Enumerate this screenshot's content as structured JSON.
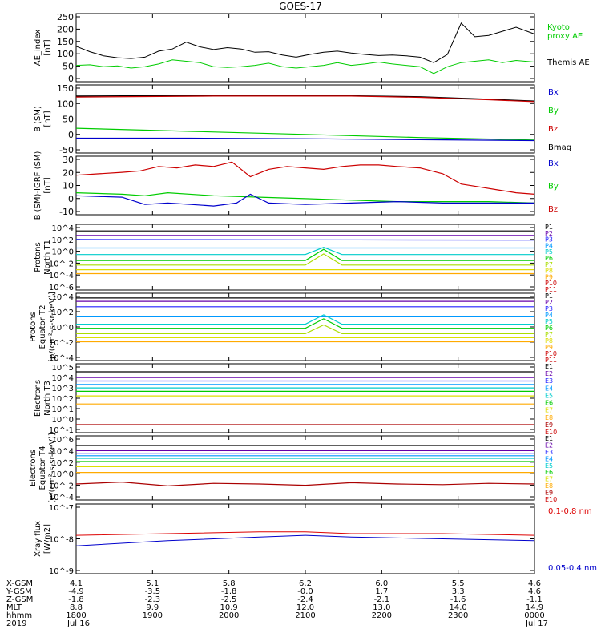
{
  "figure_title": "GOES-17",
  "chart_data": [
    {
      "type": "line",
      "ylabel": [
        "AE_index",
        "[nT]"
      ],
      "ylim": [
        0,
        250
      ],
      "yticks": [
        "250",
        "200",
        "150",
        "100",
        "50",
        "0"
      ],
      "legend": [
        "Kyoto",
        "proxy AE",
        "Themis AE"
      ],
      "series": [
        {
          "name": "Themis AE",
          "color": "#000000",
          "x": [
            0,
            0.03,
            0.06,
            0.09,
            0.12,
            0.15,
            0.18,
            0.21,
            0.24,
            0.27,
            0.3,
            0.33,
            0.36,
            0.39,
            0.42,
            0.45,
            0.48,
            0.51,
            0.54,
            0.57,
            0.6,
            0.63,
            0.66,
            0.69,
            0.72,
            0.75,
            0.78,
            0.81,
            0.84,
            0.87,
            0.9,
            0.93,
            0.96,
            1.0
          ],
          "values": [
            130,
            110,
            95,
            88,
            85,
            90,
            112,
            120,
            145,
            128,
            118,
            125,
            120,
            108,
            110,
            98,
            90,
            100,
            108,
            112,
            105,
            100,
            96,
            98,
            95,
            90,
            70,
            100,
            215,
            165,
            170,
            185,
            200,
            175
          ]
        },
        {
          "name": "Kyoto proxy AE",
          "color": "#00cc00",
          "x": [
            0,
            0.03,
            0.06,
            0.09,
            0.12,
            0.15,
            0.18,
            0.21,
            0.24,
            0.27,
            0.3,
            0.33,
            0.36,
            0.39,
            0.42,
            0.45,
            0.48,
            0.51,
            0.54,
            0.57,
            0.6,
            0.63,
            0.66,
            0.69,
            0.72,
            0.75,
            0.78,
            0.81,
            0.84,
            0.87,
            0.9,
            0.93,
            0.96,
            1.0
          ],
          "values": [
            60,
            62,
            55,
            58,
            50,
            55,
            65,
            80,
            75,
            70,
            55,
            52,
            55,
            60,
            68,
            55,
            50,
            55,
            60,
            70,
            60,
            65,
            72,
            65,
            60,
            55,
            30,
            55,
            70,
            75,
            80,
            70,
            78,
            72
          ]
        }
      ]
    },
    {
      "type": "line",
      "ylabel": [
        "B (SM)",
        "[nT]"
      ],
      "ylim": [
        -60,
        160
      ],
      "yticks": [
        "150",
        "100",
        "50",
        "0",
        "-50"
      ],
      "legend": [
        "Bx",
        "By",
        "Bz",
        "Bmag"
      ],
      "series": [
        {
          "name": "Bmag",
          "color": "#000000",
          "x": [
            0,
            0.3,
            0.6,
            0.75,
            0.9,
            1.0
          ],
          "values": [
            124,
            126,
            125,
            122,
            114,
            108
          ]
        },
        {
          "name": "Bz",
          "color": "#cc0000",
          "x": [
            0,
            0.3,
            0.6,
            0.75,
            0.9,
            1.0
          ],
          "values": [
            121,
            124,
            124,
            120,
            112,
            106
          ]
        },
        {
          "name": "By",
          "color": "#00cc00",
          "x": [
            0,
            0.25,
            0.5,
            0.75,
            1.0
          ],
          "values": [
            20,
            10,
            0,
            -10,
            -18
          ]
        },
        {
          "name": "Bx",
          "color": "#0000cc",
          "x": [
            0,
            0.25,
            0.5,
            0.75,
            1.0
          ],
          "values": [
            -12,
            -12,
            -14,
            -17,
            -20
          ]
        }
      ]
    },
    {
      "type": "line",
      "ylabel": [
        "B (SM)-IGRF (SM)",
        "[nT]"
      ],
      "ylim": [
        -10,
        30
      ],
      "yticks": [
        "30",
        "20",
        "10",
        "0",
        "-10"
      ],
      "legend": [
        "Bx",
        "By",
        "Bz"
      ],
      "series": [
        {
          "name": "Bz",
          "color": "#cc0000",
          "x": [
            0,
            0.05,
            0.1,
            0.14,
            0.18,
            0.22,
            0.26,
            0.3,
            0.34,
            0.38,
            0.42,
            0.46,
            0.5,
            0.54,
            0.58,
            0.62,
            0.66,
            0.7,
            0.75,
            0.8,
            0.84,
            0.88,
            0.92,
            0.96,
            1.0
          ],
          "values": [
            17,
            18,
            19,
            20,
            23,
            22,
            24,
            23,
            26,
            16,
            21,
            23,
            22,
            21,
            23,
            24,
            24,
            23,
            22,
            18,
            11,
            9,
            7,
            5,
            4
          ]
        },
        {
          "name": "By",
          "color": "#00cc00",
          "x": [
            0,
            0.1,
            0.15,
            0.2,
            0.3,
            0.4,
            0.5,
            0.6,
            0.7,
            0.8,
            0.9,
            1.0
          ],
          "values": [
            5,
            4,
            3,
            5,
            3,
            2,
            1,
            0,
            -1,
            -1,
            -1,
            -2
          ]
        },
        {
          "name": "Bx",
          "color": "#0000cc",
          "x": [
            0,
            0.1,
            0.15,
            0.2,
            0.25,
            0.3,
            0.35,
            0.38,
            0.42,
            0.5,
            0.6,
            0.7,
            0.8,
            0.9,
            1.0
          ],
          "values": [
            3,
            2,
            -3,
            -2,
            -3,
            -4,
            -2,
            4,
            -2,
            -3,
            -2,
            -1,
            -2,
            -2,
            -2
          ]
        }
      ]
    },
    {
      "type": "line",
      "ylabel": [
        "Protons",
        "North T1"
      ],
      "ylim": [
        -6,
        4
      ],
      "yscale": "log",
      "yticks": [
        "10^4",
        "10^2",
        "10^0",
        "10^-2",
        "10^-4",
        "10^-6"
      ],
      "legend": [
        "P1",
        "P2",
        "P3",
        "P4",
        "P5",
        "P6",
        "P7",
        "P8",
        "P9",
        "P10",
        "P11"
      ],
      "series": [
        {
          "name": "P1",
          "color": "#000000",
          "x": [
            0,
            1
          ],
          "values": [
            3.0,
            3.0
          ]
        },
        {
          "name": "P2",
          "color": "#6600aa",
          "x": [
            0,
            1
          ],
          "values": [
            2.3,
            2.3
          ]
        },
        {
          "name": "P3",
          "color": "#2222ff",
          "x": [
            0,
            1
          ],
          "values": [
            1.7,
            1.6
          ]
        },
        {
          "name": "P4",
          "color": "#0099ff",
          "x": [
            0,
            1
          ],
          "values": [
            0.4,
            0.4
          ]
        },
        {
          "name": "P5",
          "color": "#00cccc",
          "x": [
            0,
            0.5,
            0.54,
            0.58,
            1
          ],
          "values": [
            -0.6,
            -0.6,
            0.5,
            -0.6,
            -0.6
          ]
        },
        {
          "name": "P6",
          "color": "#00cc00",
          "x": [
            0,
            0.5,
            0.54,
            0.58,
            1
          ],
          "values": [
            -1.5,
            -1.5,
            0.2,
            -1.5,
            -1.5
          ]
        },
        {
          "name": "P7",
          "color": "#aadd00",
          "x": [
            0,
            0.5,
            0.54,
            0.58,
            1
          ],
          "values": [
            -2.2,
            -2.2,
            -0.5,
            -2.2,
            -2.2
          ]
        },
        {
          "name": "P8",
          "color": "#dddd00",
          "x": [
            0,
            1
          ],
          "values": [
            -2.9,
            -2.9
          ]
        },
        {
          "name": "P9",
          "color": "#ffaa00",
          "x": [
            0,
            1
          ],
          "values": [
            -3.5,
            -3.5
          ]
        }
      ]
    },
    {
      "type": "line",
      "ylabel": [
        "Protons",
        "Equator T2",
        "[p/(cm²-s-sr-keV)]"
      ],
      "ylim": [
        -6,
        4
      ],
      "yscale": "log",
      "yticks": [
        "10^4",
        "10^2",
        "10^0",
        "10^-2",
        "10^-4"
      ],
      "legend": [
        "P1",
        "P2",
        "P3",
        "P4",
        "P5",
        "P6",
        "P7",
        "P8",
        "P9",
        "P10",
        "P11"
      ],
      "series": [
        {
          "name": "P1",
          "color": "#000000",
          "x": [
            0,
            1
          ],
          "values": [
            3.3,
            3.3
          ]
        },
        {
          "name": "P2",
          "color": "#6600aa",
          "x": [
            0,
            1
          ],
          "values": [
            2.8,
            2.8
          ]
        },
        {
          "name": "P3",
          "color": "#2222ff",
          "x": [
            0,
            1
          ],
          "values": [
            2.0,
            2.0
          ]
        },
        {
          "name": "P4",
          "color": "#0099ff",
          "x": [
            0,
            1
          ],
          "values": [
            0.5,
            0.5
          ]
        },
        {
          "name": "P5",
          "color": "#00cccc",
          "x": [
            0,
            0.5,
            0.54,
            0.58,
            1
          ],
          "values": [
            -0.6,
            -0.6,
            0.8,
            -0.6,
            -0.6
          ]
        },
        {
          "name": "P6",
          "color": "#00cc00",
          "x": [
            0,
            0.5,
            0.54,
            0.58,
            1
          ],
          "values": [
            -1.2,
            -1.2,
            0.2,
            -1.2,
            -1.2
          ]
        },
        {
          "name": "P7",
          "color": "#aadd00",
          "x": [
            0,
            0.5,
            0.54,
            0.58,
            1
          ],
          "values": [
            -2.0,
            -2.0,
            -0.7,
            -2.0,
            -2.0
          ]
        },
        {
          "name": "P8",
          "color": "#dddd00",
          "x": [
            0,
            1
          ],
          "values": [
            -2.6,
            -2.6
          ]
        },
        {
          "name": "P9",
          "color": "#ffaa00",
          "x": [
            0,
            1
          ],
          "values": [
            -3.2,
            -3.2
          ]
        }
      ]
    },
    {
      "type": "line",
      "ylabel": [
        "Electrons",
        "North T3"
      ],
      "ylim": [
        -1,
        5
      ],
      "yscale": "log",
      "yticks": [
        "10^5",
        "10^4",
        "10^3",
        "10^2",
        "10^1",
        "10^0",
        "10^-1"
      ],
      "legend": [
        "E1",
        "E2",
        "E3",
        "E4",
        "E5",
        "E6",
        "E7",
        "E8",
        "E9",
        "E10"
      ],
      "series": [
        {
          "name": "E1",
          "color": "#000000",
          "x": [
            0,
            1
          ],
          "values": [
            4.3,
            4.3
          ]
        },
        {
          "name": "E2",
          "color": "#6600aa",
          "x": [
            0,
            1
          ],
          "values": [
            3.8,
            3.8
          ]
        },
        {
          "name": "E3",
          "color": "#2222ff",
          "x": [
            0,
            1
          ],
          "values": [
            3.5,
            3.5
          ]
        },
        {
          "name": "E4",
          "color": "#0099ff",
          "x": [
            0,
            1
          ],
          "values": [
            3.2,
            3.2
          ]
        },
        {
          "name": "E5",
          "color": "#00cccc",
          "x": [
            0,
            1
          ],
          "values": [
            2.9,
            2.9
          ]
        },
        {
          "name": "E6",
          "color": "#00cc00",
          "x": [
            0,
            1
          ],
          "values": [
            2.6,
            2.6
          ]
        },
        {
          "name": "E7",
          "color": "#dddd00",
          "x": [
            0,
            1
          ],
          "values": [
            2.2,
            2.2
          ]
        },
        {
          "name": "E8",
          "color": "#ffaa00",
          "x": [
            0,
            1
          ],
          "values": [
            1.5,
            1.5
          ]
        },
        {
          "name": "E9",
          "color": "#aa0000",
          "x": [
            0,
            1
          ],
          "values": [
            -0.3,
            -0.3
          ]
        }
      ]
    },
    {
      "type": "line",
      "ylabel": [
        "Electrons",
        "Equator T4",
        "[e/(cm²-s-sr-keV)]"
      ],
      "ylim": [
        -4,
        6
      ],
      "yscale": "log",
      "yticks": [
        "10^6",
        "10^4",
        "10^2",
        "10^0",
        "10^-2",
        "10^-4"
      ],
      "legend": [
        "E1",
        "E2",
        "E3",
        "E4",
        "E5",
        "E6",
        "E7",
        "E8",
        "E9",
        "E10"
      ],
      "series": [
        {
          "name": "E1",
          "color": "#000000",
          "x": [
            0,
            1
          ],
          "values": [
            4.5,
            4.5
          ]
        },
        {
          "name": "E2",
          "color": "#6600aa",
          "x": [
            0,
            1
          ],
          "values": [
            3.7,
            3.7
          ]
        },
        {
          "name": "E3",
          "color": "#2222ff",
          "x": [
            0,
            1
          ],
          "values": [
            3.2,
            3.2
          ]
        },
        {
          "name": "E4",
          "color": "#0099ff",
          "x": [
            0,
            1
          ],
          "values": [
            2.9,
            2.9
          ]
        },
        {
          "name": "E5",
          "color": "#00cccc",
          "x": [
            0,
            1
          ],
          "values": [
            2.5,
            2.5
          ]
        },
        {
          "name": "E6",
          "color": "#00cc00",
          "x": [
            0,
            1
          ],
          "values": [
            2.0,
            2.0
          ]
        },
        {
          "name": "E7",
          "color": "#dddd00",
          "x": [
            0,
            1
          ],
          "values": [
            1.2,
            1.2
          ]
        },
        {
          "name": "E8",
          "color": "#ffaa00",
          "x": [
            0,
            1
          ],
          "values": [
            0.3,
            0.3
          ]
        },
        {
          "name": "E9",
          "color": "#aa0000",
          "x": [
            0,
            0.1,
            0.2,
            0.3,
            0.4,
            0.5,
            0.6,
            0.7,
            0.8,
            0.9,
            1.0
          ],
          "values": [
            -1.5,
            -1.2,
            -1.8,
            -1.4,
            -1.5,
            -1.7,
            -1.3,
            -1.5,
            -1.6,
            -1.4,
            -1.5
          ]
        }
      ]
    },
    {
      "type": "line",
      "ylabel": [
        "Xray flux",
        "[W/m2]"
      ],
      "ylim": [
        -9,
        -7
      ],
      "yscale": "log",
      "yticks": [
        "10^-7",
        "10^-8",
        "10^-9"
      ],
      "legend": [
        "0.1-0.8 nm",
        "0.05-0.4 nm"
      ],
      "series": [
        {
          "name": "0.1-0.8 nm",
          "color": "#dd0000",
          "x": [
            0,
            0.2,
            0.4,
            0.5,
            0.6,
            0.8,
            1.0
          ],
          "values": [
            -7.9,
            -7.85,
            -7.8,
            -7.8,
            -7.85,
            -7.85,
            -7.9
          ]
        },
        {
          "name": "0.05-0.4 nm",
          "color": "#0000cc",
          "x": [
            0,
            0.2,
            0.4,
            0.5,
            0.6,
            0.8,
            1.0
          ],
          "values": [
            -8.2,
            -8.05,
            -7.95,
            -7.9,
            -7.95,
            -8.0,
            -8.05
          ]
        }
      ]
    }
  ],
  "x_axis": {
    "rows": [
      "X-GSM",
      "Y-GSM",
      "Z-GSM",
      "MLT",
      "hhmm",
      "2019"
    ],
    "columns": [
      {
        "values": [
          "4.1",
          "-4.9",
          "-1.8",
          "8.8",
          "1800",
          "Jul 16"
        ]
      },
      {
        "values": [
          "5.1",
          "-3.5",
          "-2.3",
          "9.9",
          "1900",
          ""
        ]
      },
      {
        "values": [
          "5.8",
          "-1.8",
          "-2.5",
          "10.9",
          "2000",
          ""
        ]
      },
      {
        "values": [
          "6.2",
          "-0.0",
          "-2.4",
          "12.0",
          "2100",
          ""
        ]
      },
      {
        "values": [
          "6.0",
          "1.7",
          "-2.1",
          "13.0",
          "2200",
          ""
        ]
      },
      {
        "values": [
          "5.5",
          "3.3",
          "-1.6",
          "14.0",
          "2300",
          ""
        ]
      },
      {
        "values": [
          "4.6",
          "4.6",
          "-1.1",
          "14.9",
          "0000",
          "Jul 17"
        ]
      }
    ]
  },
  "colors": {
    "axis": "#000000",
    "background": "#ffffff"
  }
}
